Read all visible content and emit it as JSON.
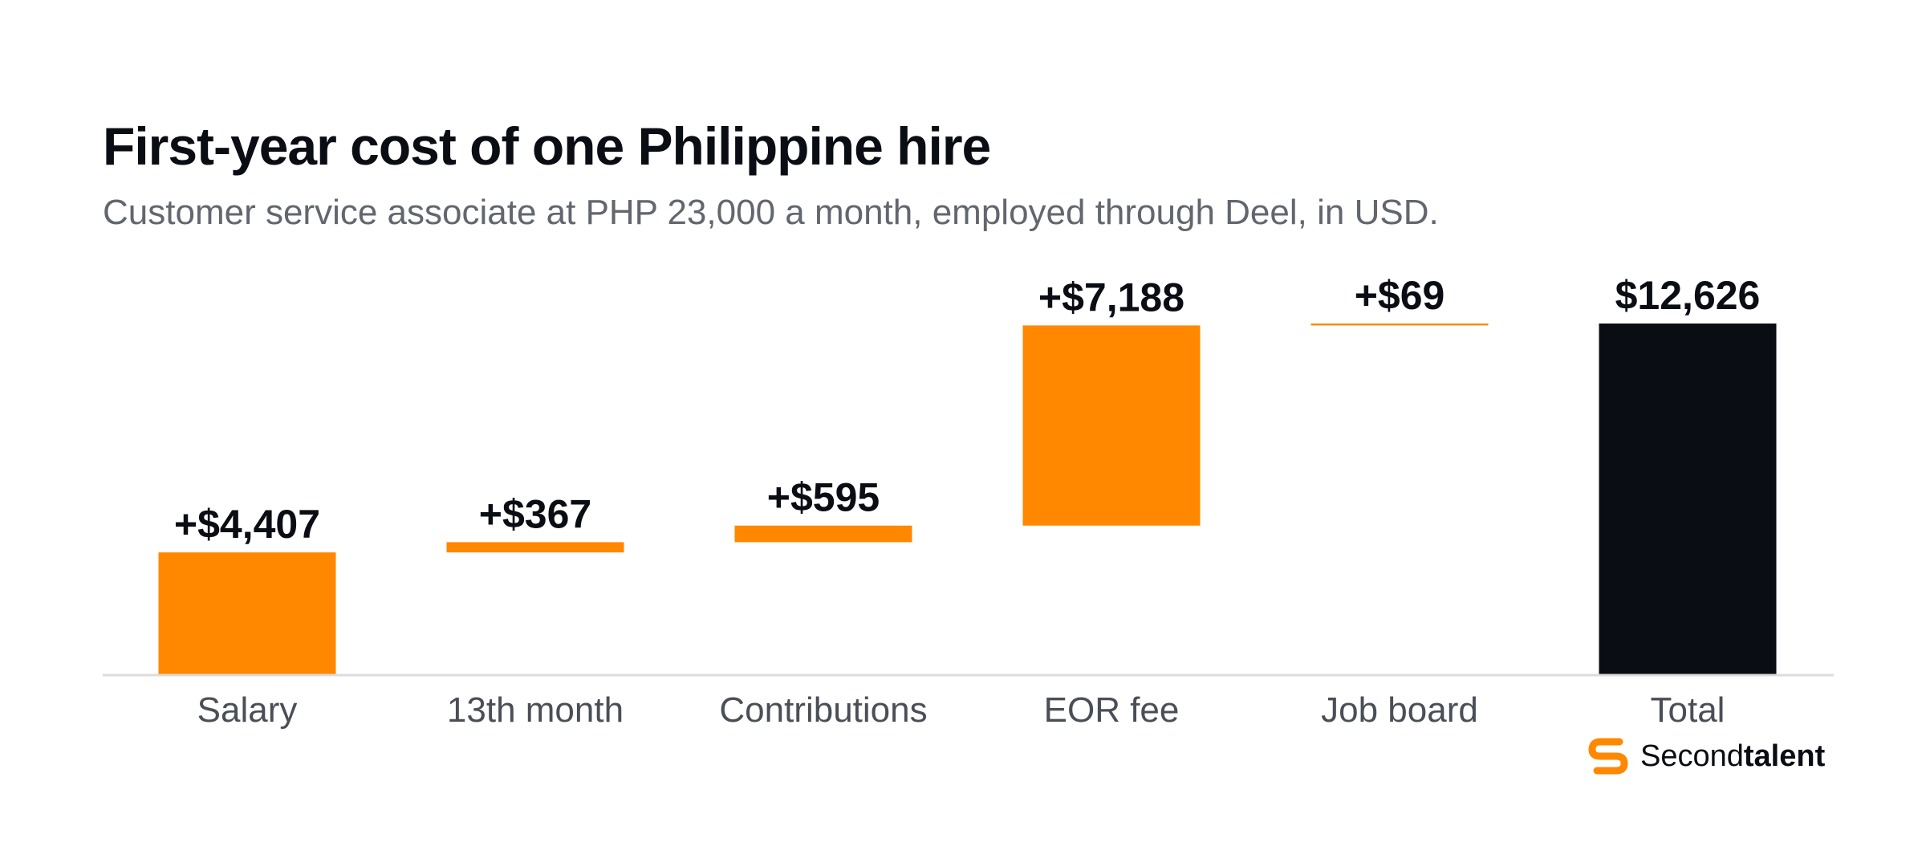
{
  "title": "First-year cost of one Philippine hire",
  "subtitle": "Customer service associate at PHP 23,000 a month, employed through Deel, in USD.",
  "colors": {
    "increment": "#ff8800",
    "total": "#0b0d14",
    "baseline": "#dcdcdc"
  },
  "chart_data": {
    "type": "bar",
    "variant": "waterfall",
    "categories": [
      "Salary",
      "13th month",
      "Contributions",
      "EOR fee",
      "Job board",
      "Total"
    ],
    "values": [
      4407,
      367,
      595,
      7188,
      69,
      12626
    ],
    "labels": [
      "+$4,407",
      "+$367",
      "+$595",
      "+$7,188",
      "+$69",
      "$12,626"
    ],
    "is_total": [
      false,
      false,
      false,
      false,
      false,
      true
    ],
    "ylim": [
      0,
      12626
    ],
    "grid": false,
    "legend": "none"
  },
  "brand": {
    "logo_icon": "secondtalent-s-icon",
    "name_regular": "Second",
    "name_bold": "talent"
  }
}
